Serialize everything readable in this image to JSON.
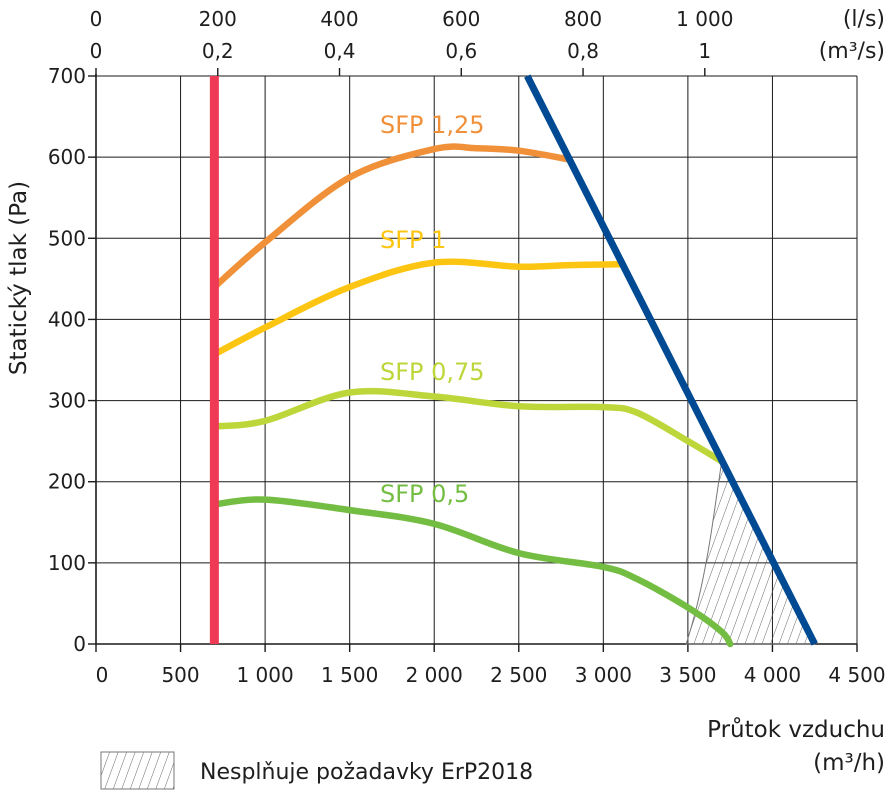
{
  "chart_data": {
    "type": "line",
    "ylabel": "Statický tlak (Pa)",
    "xlabel_line1": "Průtok vzduchu",
    "xlabel_line2": "(m³/h)",
    "xlim": [
      0,
      4500
    ],
    "ylim": [
      0,
      700
    ],
    "grid": true,
    "x_ticks": [
      0,
      500,
      1000,
      1500,
      2000,
      2500,
      3000,
      3500,
      4000,
      4500
    ],
    "x_tick_labels": [
      "0",
      "500",
      "1 000",
      "1 500",
      "2 000",
      "2 500",
      "3 000",
      "3 500",
      "4 000",
      "4 500"
    ],
    "y_ticks": [
      0,
      100,
      200,
      300,
      400,
      500,
      600,
      700
    ],
    "y_tick_labels": [
      "0",
      "100",
      "200",
      "300",
      "400",
      "500",
      "600",
      "700"
    ],
    "top_axis_ls": {
      "unit": "(l/s)",
      "ticks": [
        0,
        200,
        400,
        600,
        800,
        1000
      ],
      "labels": [
        "0",
        "200",
        "400",
        "600",
        "800",
        "1 000"
      ]
    },
    "top_axis_m3s": {
      "unit": "(m³/s)",
      "ticks": [
        0,
        0.2,
        0.4,
        0.6,
        0.8,
        1.0
      ],
      "labels": [
        "0",
        "0,2",
        "0,4",
        "0,6",
        "0,8",
        "1"
      ]
    },
    "series": [
      {
        "name": "SFP 1,25",
        "color": "#f0913a",
        "x": [
          700,
          1000,
          1500,
          2000,
          2250,
          2500,
          2800
        ],
        "y": [
          440,
          495,
          575,
          610,
          611,
          608,
          597
        ]
      },
      {
        "name": "SFP 1",
        "color": "#fcc512",
        "x": [
          700,
          1000,
          1500,
          2000,
          2500,
          2800,
          3100
        ],
        "y": [
          357,
          390,
          440,
          470,
          465,
          467,
          468
        ]
      },
      {
        "name": "SFP 0,75",
        "color": "#bdd63a",
        "x": [
          700,
          1000,
          1500,
          2000,
          2500,
          3000,
          3200,
          3500,
          3700
        ],
        "y": [
          268,
          275,
          310,
          305,
          293,
          292,
          285,
          250,
          225
        ]
      },
      {
        "name": "SFP 0,5",
        "color": "#74bd43",
        "x": [
          700,
          1000,
          1500,
          2000,
          2500,
          3000,
          3200,
          3500,
          3700,
          3750
        ],
        "y": [
          172,
          178,
          165,
          148,
          112,
          95,
          80,
          45,
          15,
          0
        ]
      }
    ],
    "min_limit": {
      "color": "#ee3a55",
      "x": [
        700,
        700
      ],
      "y": [
        0,
        700
      ]
    },
    "max_limit": {
      "color": "#004a93",
      "x": [
        2550,
        4250
      ],
      "y": [
        700,
        0
      ]
    },
    "hatched_region": {
      "x": [
        3720,
        4250,
        3490,
        3520,
        3580,
        3640,
        3700
      ],
      "y": [
        225,
        0,
        0,
        20,
        60,
        140,
        225
      ]
    },
    "legend": {
      "label": "Nesplňuje požadavky ErP2018",
      "placement": "bottom-left"
    }
  }
}
